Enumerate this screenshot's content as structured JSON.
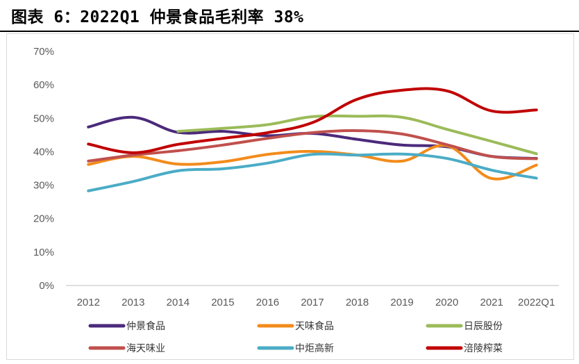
{
  "title": "图表 6：2022Q1 仲景食品毛利率 38%",
  "chart_data": {
    "type": "line",
    "title": "图表 6：2022Q1 仲景食品毛利率 38%",
    "xlabel": "",
    "ylabel": "",
    "categories": [
      "2012",
      "2013",
      "2014",
      "2015",
      "2016",
      "2017",
      "2018",
      "2019",
      "2020",
      "2021",
      "2022Q1"
    ],
    "ylim": [
      0,
      0.7
    ],
    "yticks": [
      0,
      0.1,
      0.2,
      0.3,
      0.4,
      0.5,
      0.6,
      0.7
    ],
    "ytick_labels": [
      "0%",
      "10%",
      "20%",
      "30%",
      "40%",
      "50%",
      "60%",
      "70%"
    ],
    "legend_position": "bottom",
    "series": [
      {
        "name": "仲景食品",
        "color": "#4b2a7b",
        "values": [
          0.474,
          0.503,
          0.458,
          0.461,
          0.448,
          0.455,
          0.437,
          0.42,
          0.415,
          0.386,
          0.38
        ]
      },
      {
        "name": "天味食品",
        "color": "#f28c1c",
        "values": [
          0.362,
          0.386,
          0.363,
          0.37,
          0.392,
          0.401,
          0.39,
          0.372,
          0.418,
          0.32,
          0.36
        ]
      },
      {
        "name": "日辰股份",
        "color": "#9bbb59",
        "values": [
          null,
          null,
          0.461,
          0.47,
          0.481,
          0.505,
          0.506,
          0.503,
          0.467,
          0.431,
          0.394
        ]
      },
      {
        "name": "海天味业",
        "color": "#c0504d",
        "values": [
          0.372,
          0.39,
          0.403,
          0.42,
          0.44,
          0.457,
          0.463,
          0.453,
          0.421,
          0.386,
          0.379
        ]
      },
      {
        "name": "中炬高新",
        "color": "#4bacc6",
        "values": [
          0.283,
          0.311,
          0.343,
          0.349,
          0.366,
          0.392,
          0.39,
          0.393,
          0.38,
          0.345,
          0.321
        ]
      },
      {
        "name": "涪陵榨菜",
        "color": "#c00000",
        "values": [
          0.423,
          0.397,
          0.422,
          0.44,
          0.457,
          0.487,
          0.557,
          0.584,
          0.582,
          0.522,
          0.525
        ]
      }
    ]
  }
}
